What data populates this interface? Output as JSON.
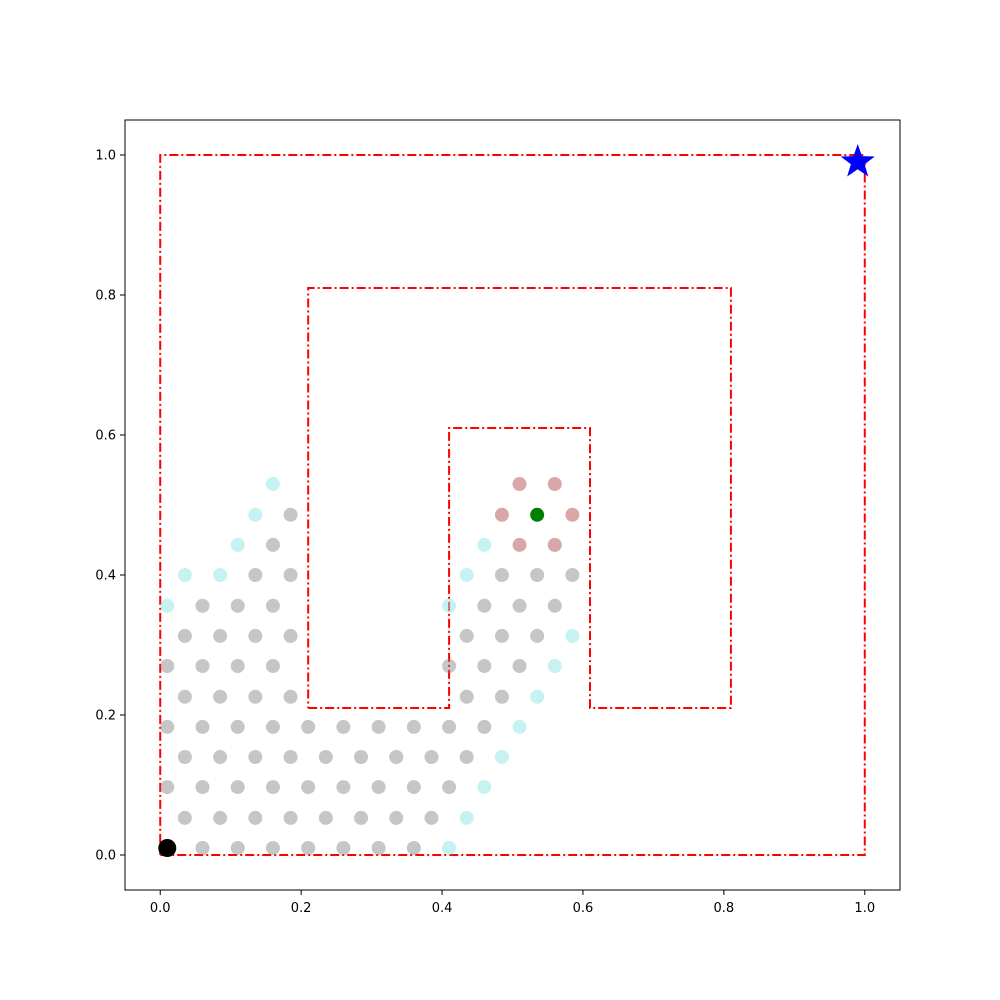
{
  "chart_data": {
    "type": "scatter",
    "title": "",
    "xlabel": "",
    "ylabel": "",
    "xlim": [
      -0.05,
      1.05
    ],
    "ylim": [
      -0.05,
      1.05
    ],
    "grid": false,
    "x_ticks": [
      "0.0",
      "0.2",
      "0.4",
      "0.6",
      "0.8",
      "1.0"
    ],
    "y_ticks": [
      "0.0",
      "0.2",
      "0.4",
      "0.6",
      "0.8",
      "1.0"
    ],
    "colors": {
      "boundary": "#ff0000",
      "visited": "#808080",
      "frontier": "#8ee6e6",
      "near_goal": "#b45050",
      "current": "#008000",
      "start": "#000000",
      "goal": "#0000ff"
    },
    "boundary": [
      [
        0.0,
        0.0
      ],
      [
        1.0,
        0.0
      ],
      [
        1.0,
        1.0
      ],
      [
        0.0,
        1.0
      ],
      [
        0.0,
        0.0
      ],
      null,
      [
        0.21,
        0.21
      ],
      [
        0.41,
        0.21
      ],
      [
        0.41,
        0.61
      ],
      [
        0.61,
        0.61
      ],
      [
        0.61,
        0.21
      ],
      [
        0.81,
        0.21
      ],
      [
        0.81,
        0.81
      ],
      [
        0.21,
        0.81
      ],
      [
        0.21,
        0.21
      ]
    ],
    "visited": [
      [
        0.06,
        0.01
      ],
      [
        0.11,
        0.01
      ],
      [
        0.16,
        0.01
      ],
      [
        0.21,
        0.01
      ],
      [
        0.26,
        0.01
      ],
      [
        0.31,
        0.01
      ],
      [
        0.36,
        0.01
      ],
      [
        0.035,
        0.053
      ],
      [
        0.085,
        0.053
      ],
      [
        0.135,
        0.053
      ],
      [
        0.185,
        0.053
      ],
      [
        0.235,
        0.053
      ],
      [
        0.285,
        0.053
      ],
      [
        0.335,
        0.053
      ],
      [
        0.385,
        0.053
      ],
      [
        0.01,
        0.097
      ],
      [
        0.06,
        0.097
      ],
      [
        0.11,
        0.097
      ],
      [
        0.16,
        0.097
      ],
      [
        0.21,
        0.097
      ],
      [
        0.26,
        0.097
      ],
      [
        0.31,
        0.097
      ],
      [
        0.36,
        0.097
      ],
      [
        0.41,
        0.097
      ],
      [
        0.035,
        0.14
      ],
      [
        0.085,
        0.14
      ],
      [
        0.135,
        0.14
      ],
      [
        0.185,
        0.14
      ],
      [
        0.235,
        0.14
      ],
      [
        0.285,
        0.14
      ],
      [
        0.335,
        0.14
      ],
      [
        0.385,
        0.14
      ],
      [
        0.435,
        0.14
      ],
      [
        0.01,
        0.183
      ],
      [
        0.06,
        0.183
      ],
      [
        0.11,
        0.183
      ],
      [
        0.16,
        0.183
      ],
      [
        0.21,
        0.183
      ],
      [
        0.26,
        0.183
      ],
      [
        0.31,
        0.183
      ],
      [
        0.36,
        0.183
      ],
      [
        0.41,
        0.183
      ],
      [
        0.46,
        0.183
      ],
      [
        0.035,
        0.226
      ],
      [
        0.085,
        0.226
      ],
      [
        0.135,
        0.226
      ],
      [
        0.185,
        0.226
      ],
      [
        0.435,
        0.226
      ],
      [
        0.485,
        0.226
      ],
      [
        0.01,
        0.27
      ],
      [
        0.06,
        0.27
      ],
      [
        0.11,
        0.27
      ],
      [
        0.16,
        0.27
      ],
      [
        0.41,
        0.27
      ],
      [
        0.46,
        0.27
      ],
      [
        0.51,
        0.27
      ],
      [
        0.035,
        0.313
      ],
      [
        0.085,
        0.313
      ],
      [
        0.135,
        0.313
      ],
      [
        0.185,
        0.313
      ],
      [
        0.435,
        0.313
      ],
      [
        0.485,
        0.313
      ],
      [
        0.535,
        0.313
      ],
      [
        0.06,
        0.356
      ],
      [
        0.11,
        0.356
      ],
      [
        0.16,
        0.356
      ],
      [
        0.46,
        0.356
      ],
      [
        0.51,
        0.356
      ],
      [
        0.56,
        0.356
      ],
      [
        0.135,
        0.4
      ],
      [
        0.185,
        0.4
      ],
      [
        0.485,
        0.4
      ],
      [
        0.535,
        0.4
      ],
      [
        0.585,
        0.4
      ],
      [
        0.16,
        0.443
      ],
      [
        0.185,
        0.486
      ]
    ],
    "frontier": [
      [
        0.41,
        0.01
      ],
      [
        0.435,
        0.053
      ],
      [
        0.46,
        0.097
      ],
      [
        0.485,
        0.14
      ],
      [
        0.51,
        0.183
      ],
      [
        0.535,
        0.226
      ],
      [
        0.56,
        0.27
      ],
      [
        0.585,
        0.313
      ],
      [
        0.01,
        0.356
      ],
      [
        0.41,
        0.356
      ],
      [
        0.035,
        0.4
      ],
      [
        0.085,
        0.4
      ],
      [
        0.435,
        0.4
      ],
      [
        0.11,
        0.443
      ],
      [
        0.46,
        0.443
      ],
      [
        0.135,
        0.486
      ],
      [
        0.16,
        0.53
      ]
    ],
    "near_goal": [
      [
        0.51,
        0.443
      ],
      [
        0.56,
        0.443
      ],
      [
        0.485,
        0.486
      ],
      [
        0.585,
        0.486
      ],
      [
        0.51,
        0.53
      ],
      [
        0.56,
        0.53
      ]
    ],
    "current": [
      0.535,
      0.486
    ],
    "start": [
      0.01,
      0.01
    ],
    "goal": [
      0.99,
      0.99
    ]
  }
}
